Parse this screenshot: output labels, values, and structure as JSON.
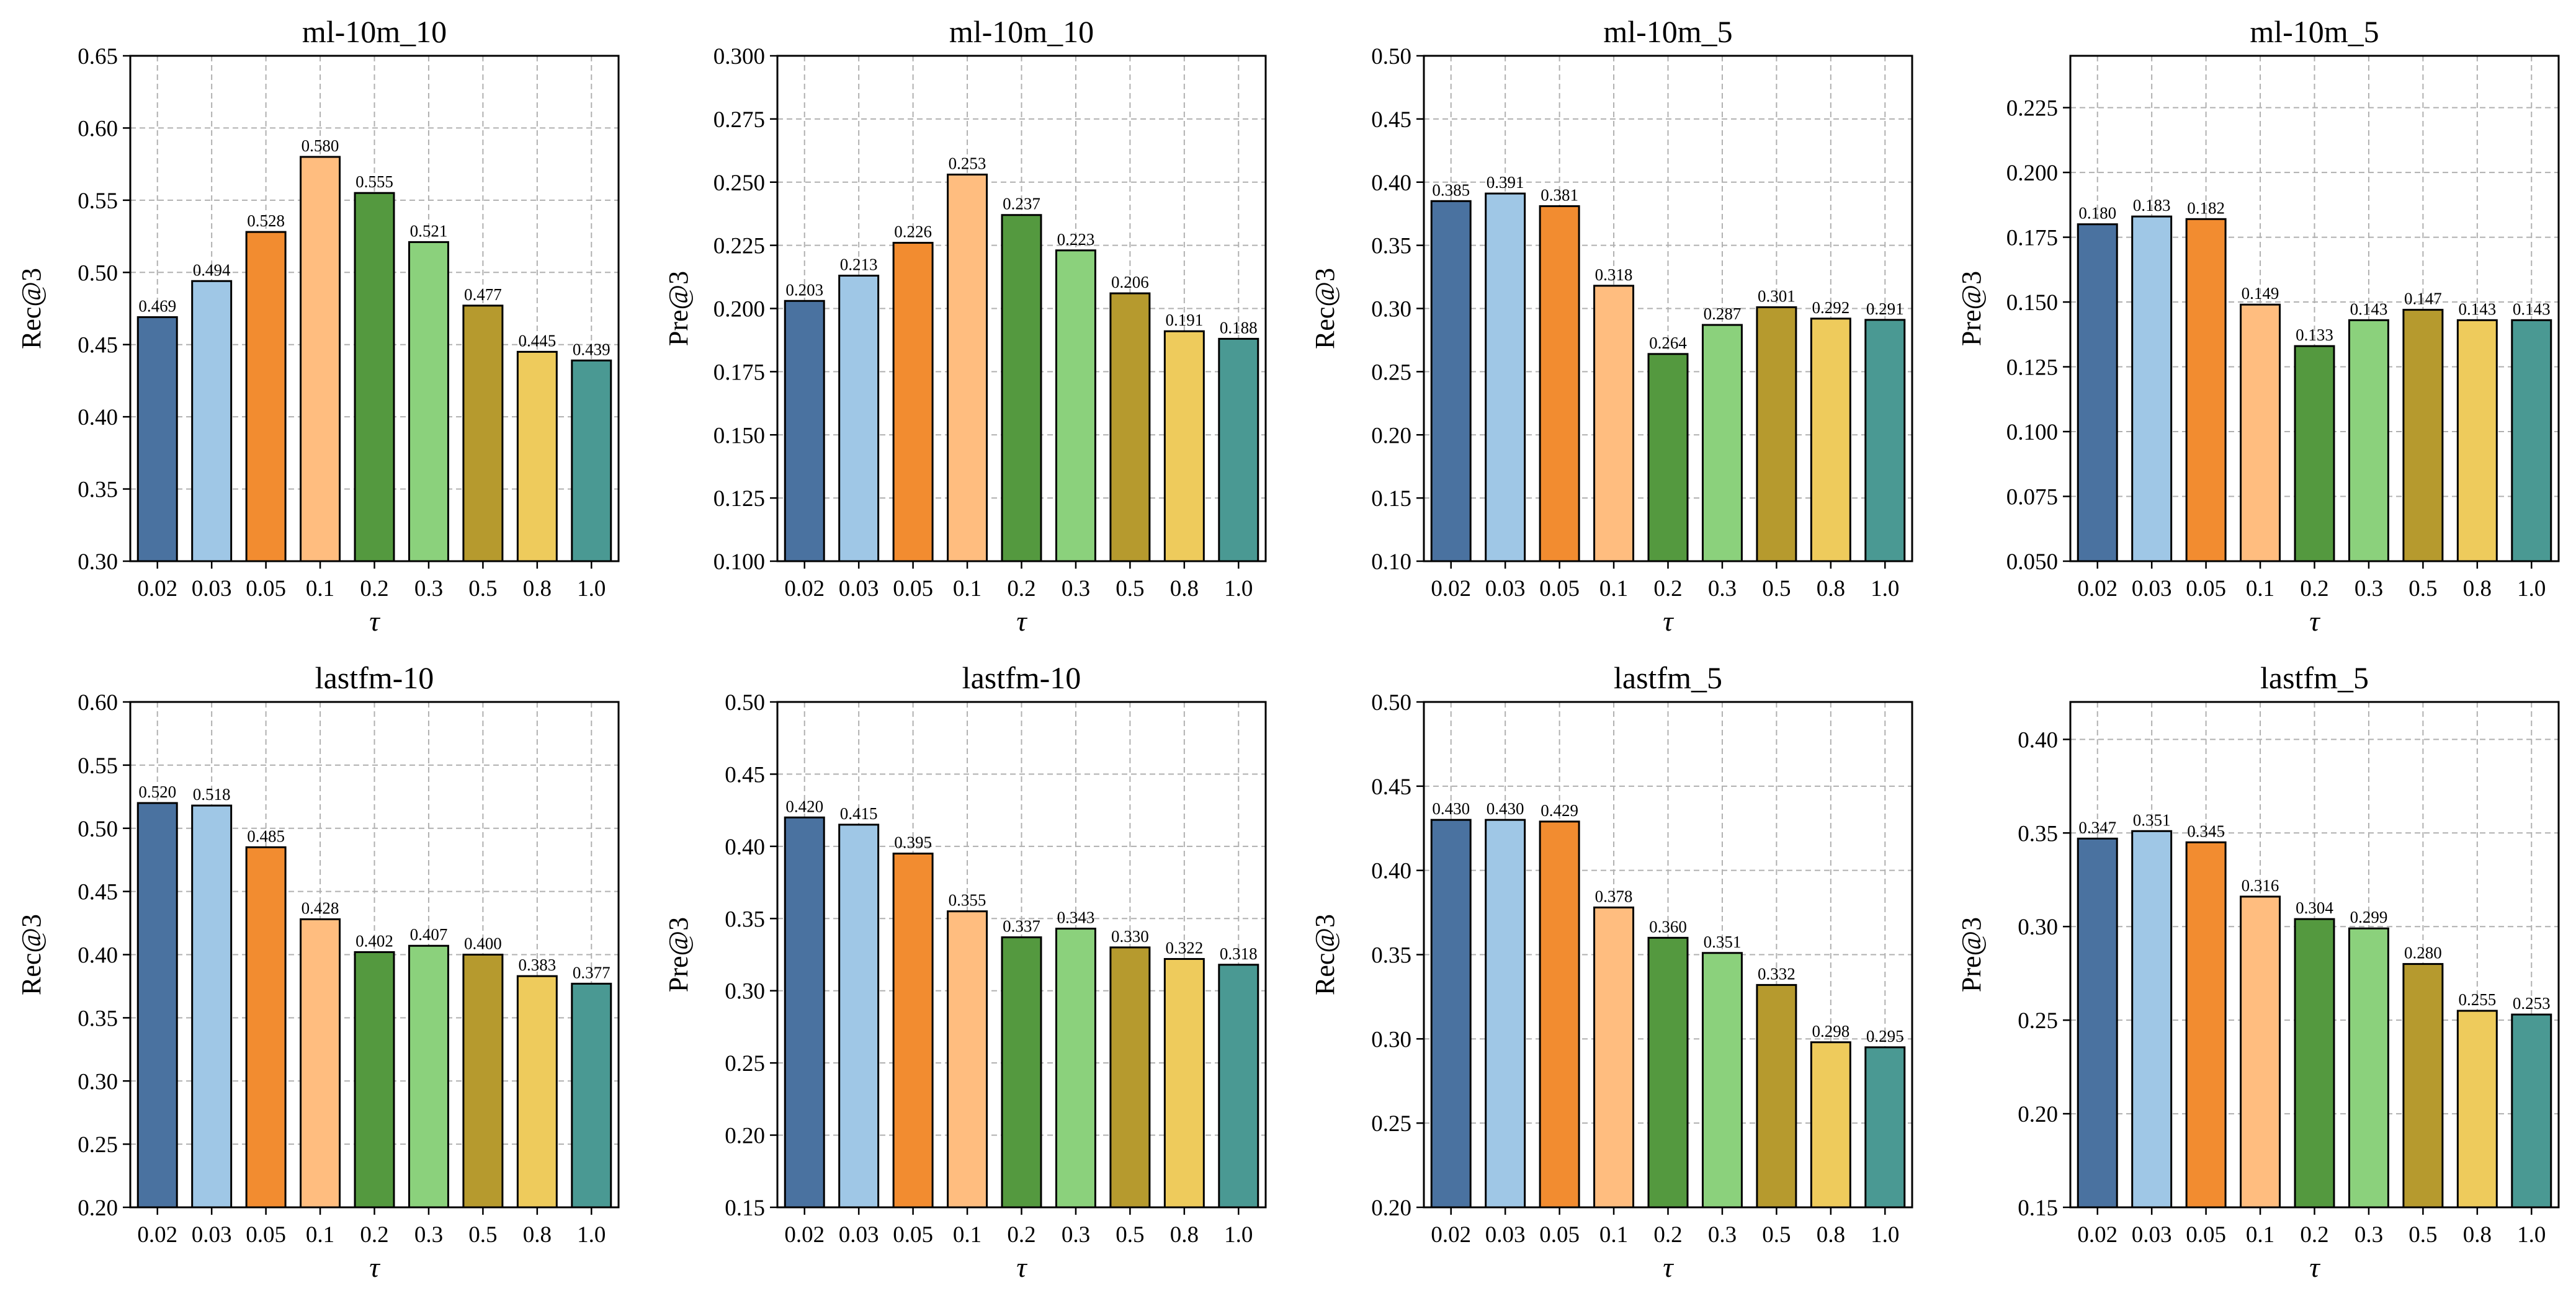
{
  "chart_data": [
    {
      "type": "bar",
      "title": "ml-10m_10",
      "xlabel": "τ",
      "ylabel": "Rec@3",
      "ylim": [
        0.3,
        0.65
      ],
      "yticks": [
        "0.30",
        "0.35",
        "0.40",
        "0.45",
        "0.50",
        "0.55",
        "0.60",
        "0.65"
      ],
      "categories": [
        "0.02",
        "0.03",
        "0.05",
        "0.1",
        "0.2",
        "0.3",
        "0.5",
        "0.8",
        "1.0"
      ],
      "values": [
        0.469,
        0.494,
        0.528,
        0.58,
        0.555,
        0.521,
        0.477,
        0.445,
        0.439
      ],
      "value_labels": [
        "0.469",
        "0.494",
        "0.528",
        "0.580",
        "0.555",
        "0.521",
        "0.477",
        "0.445",
        "0.439"
      ]
    },
    {
      "type": "bar",
      "title": "ml-10m_10",
      "xlabel": "τ",
      "ylabel": "Pre@3",
      "ylim": [
        0.1,
        0.3
      ],
      "yticks": [
        "0.100",
        "0.125",
        "0.150",
        "0.175",
        "0.200",
        "0.225",
        "0.250",
        "0.275",
        "0.300"
      ],
      "categories": [
        "0.02",
        "0.03",
        "0.05",
        "0.1",
        "0.2",
        "0.3",
        "0.5",
        "0.8",
        "1.0"
      ],
      "values": [
        0.203,
        0.213,
        0.226,
        0.253,
        0.237,
        0.223,
        0.206,
        0.191,
        0.188
      ],
      "value_labels": [
        "0.203",
        "0.213",
        "0.226",
        "0.253",
        "0.237",
        "0.223",
        "0.206",
        "0.191",
        "0.188"
      ]
    },
    {
      "type": "bar",
      "title": "ml-10m_5",
      "xlabel": "τ",
      "ylabel": "Rec@3",
      "ylim": [
        0.1,
        0.5
      ],
      "yticks": [
        "0.10",
        "0.15",
        "0.20",
        "0.25",
        "0.30",
        "0.35",
        "0.40",
        "0.45",
        "0.50"
      ],
      "categories": [
        "0.02",
        "0.03",
        "0.05",
        "0.1",
        "0.2",
        "0.3",
        "0.5",
        "0.8",
        "1.0"
      ],
      "values": [
        0.385,
        0.391,
        0.381,
        0.318,
        0.264,
        0.287,
        0.301,
        0.292,
        0.291
      ],
      "value_labels": [
        "0.385",
        "0.391",
        "0.381",
        "0.318",
        "0.264",
        "0.287",
        "0.301",
        "0.292",
        "0.291"
      ]
    },
    {
      "type": "bar",
      "title": "ml-10m_5",
      "xlabel": "τ",
      "ylabel": "Pre@3",
      "ylim": [
        0.05,
        0.245
      ],
      "yticks": [
        "0.050",
        "0.075",
        "0.100",
        "0.125",
        "0.150",
        "0.175",
        "0.200",
        "0.225"
      ],
      "categories": [
        "0.02",
        "0.03",
        "0.05",
        "0.1",
        "0.2",
        "0.3",
        "0.5",
        "0.8",
        "1.0"
      ],
      "values": [
        0.18,
        0.183,
        0.182,
        0.149,
        0.133,
        0.143,
        0.147,
        0.143,
        0.143
      ],
      "value_labels": [
        "0.180",
        "0.183",
        "0.182",
        "0.149",
        "0.133",
        "0.143",
        "0.147",
        "0.143",
        "0.143"
      ]
    },
    {
      "type": "bar",
      "title": "lastfm-10",
      "xlabel": "τ",
      "ylabel": "Rec@3",
      "ylim": [
        0.2,
        0.6
      ],
      "yticks": [
        "0.20",
        "0.25",
        "0.30",
        "0.35",
        "0.40",
        "0.45",
        "0.50",
        "0.55",
        "0.60"
      ],
      "categories": [
        "0.02",
        "0.03",
        "0.05",
        "0.1",
        "0.2",
        "0.3",
        "0.5",
        "0.8",
        "1.0"
      ],
      "values": [
        0.52,
        0.518,
        0.485,
        0.428,
        0.402,
        0.407,
        0.4,
        0.383,
        0.377
      ],
      "value_labels": [
        "0.520",
        "0.518",
        "0.485",
        "0.428",
        "0.402",
        "0.407",
        "0.400",
        "0.383",
        "0.377"
      ]
    },
    {
      "type": "bar",
      "title": "lastfm-10",
      "xlabel": "τ",
      "ylabel": "Pre@3",
      "ylim": [
        0.15,
        0.5
      ],
      "yticks": [
        "0.15",
        "0.20",
        "0.25",
        "0.30",
        "0.35",
        "0.40",
        "0.45",
        "0.50"
      ],
      "categories": [
        "0.02",
        "0.03",
        "0.05",
        "0.1",
        "0.2",
        "0.3",
        "0.5",
        "0.8",
        "1.0"
      ],
      "values": [
        0.42,
        0.415,
        0.395,
        0.355,
        0.337,
        0.343,
        0.33,
        0.322,
        0.318
      ],
      "value_labels": [
        "0.420",
        "0.415",
        "0.395",
        "0.355",
        "0.337",
        "0.343",
        "0.330",
        "0.322",
        "0.318"
      ]
    },
    {
      "type": "bar",
      "title": "lastfm_5",
      "xlabel": "τ",
      "ylabel": "Rec@3",
      "ylim": [
        0.2,
        0.5
      ],
      "yticks": [
        "0.20",
        "0.25",
        "0.30",
        "0.35",
        "0.40",
        "0.45",
        "0.50"
      ],
      "categories": [
        "0.02",
        "0.03",
        "0.05",
        "0.1",
        "0.2",
        "0.3",
        "0.5",
        "0.8",
        "1.0"
      ],
      "values": [
        0.43,
        0.43,
        0.429,
        0.378,
        0.36,
        0.351,
        0.332,
        0.298,
        0.295
      ],
      "value_labels": [
        "0.430",
        "0.430",
        "0.429",
        "0.378",
        "0.360",
        "0.351",
        "0.332",
        "0.298",
        "0.295"
      ]
    },
    {
      "type": "bar",
      "title": "lastfm_5",
      "xlabel": "τ",
      "ylabel": "Pre@3",
      "ylim": [
        0.15,
        0.42
      ],
      "yticks": [
        "0.15",
        "0.20",
        "0.25",
        "0.30",
        "0.35",
        "0.40"
      ],
      "categories": [
        "0.02",
        "0.03",
        "0.05",
        "0.1",
        "0.2",
        "0.3",
        "0.5",
        "0.8",
        "1.0"
      ],
      "values": [
        0.347,
        0.351,
        0.345,
        0.316,
        0.304,
        0.299,
        0.28,
        0.255,
        0.253
      ],
      "value_labels": [
        "0.347",
        "0.351",
        "0.345",
        "0.316",
        "0.304",
        "0.299",
        "0.280",
        "0.255",
        "0.253"
      ]
    }
  ],
  "colors": [
    "#4a72a0",
    "#9fc7e6",
    "#f28c30",
    "#ffbd7f",
    "#54993f",
    "#8bd17c",
    "#b69a2e",
    "#eecb5c",
    "#4a9993"
  ]
}
